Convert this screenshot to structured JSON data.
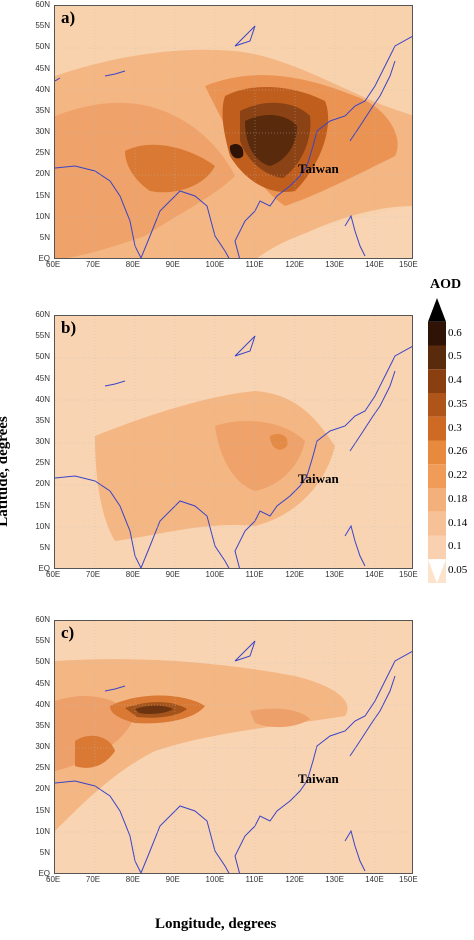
{
  "panels": [
    {
      "label": "a)",
      "annotation": "Taiwan"
    },
    {
      "label": "b)",
      "annotation": "Taiwan"
    },
    {
      "label": "c)",
      "annotation": "Taiwan"
    }
  ],
  "lat_ticks": [
    "60N",
    "55N",
    "50N",
    "45N",
    "40N",
    "35N",
    "30N",
    "25N",
    "20N",
    "15N",
    "10N",
    "5N",
    "EQ"
  ],
  "lon_ticks": [
    "60E",
    "70E",
    "80E",
    "90E",
    "100E",
    "110E",
    "120E",
    "130E",
    "140E",
    "150E"
  ],
  "y_axis_title": "Latitude, degrees",
  "x_axis_title": "Longitude, degrees",
  "colorbar": {
    "title": "AOD",
    "levels": [
      "0.6",
      "0.5",
      "0.4",
      "0.35",
      "0.3",
      "0.26",
      "0.22",
      "0.18",
      "0.14",
      "0.1",
      "0.05"
    ],
    "colors": [
      "#2e1306",
      "#5a2a0c",
      "#8a3f10",
      "#b0551a",
      "#cf6a24",
      "#e88a3e",
      "#f09b57",
      "#f4b07a",
      "#f7c197",
      "#f9d1b0",
      "#fde3cc"
    ]
  }
}
